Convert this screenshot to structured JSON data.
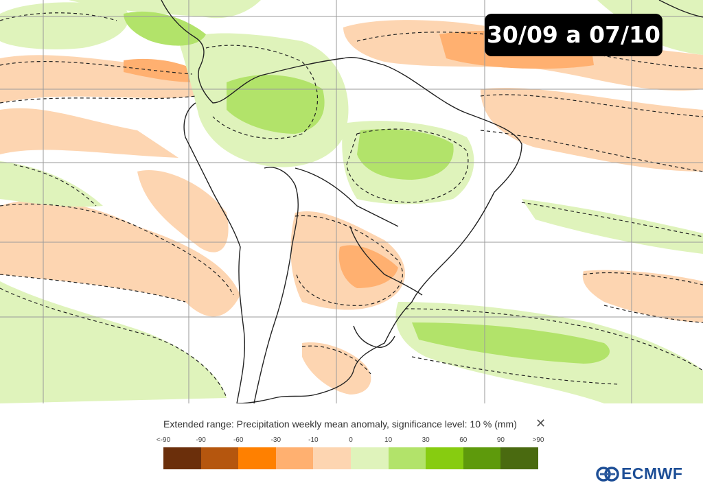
{
  "badge": {
    "period": "30/09 a 07/10"
  },
  "legend": {
    "title": "Extended range: Precipitation weekly mean anomaly, significance level: 10 % (mm)",
    "close_symbol": "✕",
    "ticks": [
      "<-90",
      "-90",
      "-60",
      "-30",
      "-10",
      "0",
      "10",
      "30",
      "60",
      "90",
      ">90"
    ],
    "colors": [
      "#6b2f0b",
      "#b5560e",
      "#ff8000",
      "#ffb070",
      "#fdd5b1",
      "#dff3bb",
      "#b2e36a",
      "#87cc10",
      "#5e9a0c",
      "#4a6a10"
    ]
  },
  "logo": {
    "text": "ECMWF",
    "icon": "ecmwf-logo-icon"
  },
  "map": {
    "region": "South America",
    "colors": {
      "dry_light": "#fdd5b1",
      "dry_medium": "#ffb070",
      "wet_light": "#dff3bb",
      "wet_medium": "#b2e36a",
      "wet_strong": "#87cc10",
      "grid": "#aaaaaa",
      "coast": "#222222"
    }
  }
}
